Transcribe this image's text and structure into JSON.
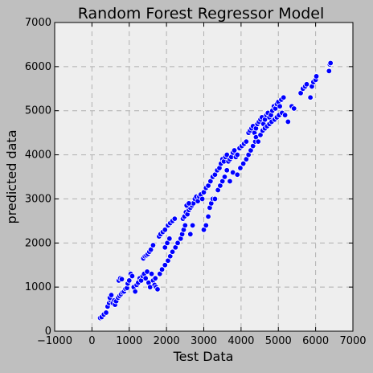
{
  "chart_data": {
    "type": "scatter",
    "title": "Random Forest Regressor Model",
    "xlabel": "Test Data",
    "ylabel": "predicted data",
    "xlim": [
      -1000,
      7000
    ],
    "ylim": [
      0,
      7000
    ],
    "xticks": [
      "−1000",
      "0",
      "1000",
      "2000",
      "3000",
      "4000",
      "5000",
      "6000",
      "7000"
    ],
    "yticks": [
      "0",
      "1000",
      "2000",
      "3000",
      "4000",
      "5000",
      "6000",
      "7000"
    ],
    "grid": true,
    "marker_color": "#0000ff",
    "marker_edge_color": "#ffffff",
    "plot_background": "#eeeeee",
    "figure_background": "#bfbfbf",
    "series": [
      {
        "points": [
          [
            220,
            300
          ],
          [
            260,
            320
          ],
          [
            320,
            380
          ],
          [
            380,
            420
          ],
          [
            420,
            560
          ],
          [
            460,
            640
          ],
          [
            500,
            700
          ],
          [
            480,
            760
          ],
          [
            520,
            820
          ],
          [
            560,
            640
          ],
          [
            600,
            700
          ],
          [
            620,
            600
          ],
          [
            650,
            680
          ],
          [
            700,
            760
          ],
          [
            740,
            800
          ],
          [
            780,
            840
          ],
          [
            820,
            880
          ],
          [
            860,
            900
          ],
          [
            900,
            960
          ],
          [
            940,
            980
          ],
          [
            720,
            1150
          ],
          [
            760,
            1200
          ],
          [
            800,
            1180
          ],
          [
            960,
            1080
          ],
          [
            1000,
            1150
          ],
          [
            1040,
            1300
          ],
          [
            1080,
            1250
          ],
          [
            1120,
            1000
          ],
          [
            1160,
            900
          ],
          [
            1200,
            1050
          ],
          [
            1240,
            1100
          ],
          [
            1280,
            1200
          ],
          [
            1320,
            1150
          ],
          [
            1360,
            1250
          ],
          [
            1400,
            1300
          ],
          [
            1440,
            1200
          ],
          [
            1480,
            1350
          ],
          [
            1520,
            1100
          ],
          [
            1560,
            1000
          ],
          [
            1600,
            1300
          ],
          [
            1640,
            1150
          ],
          [
            1680,
            1050
          ],
          [
            1700,
            1200
          ],
          [
            1720,
            1000
          ],
          [
            1760,
            950
          ],
          [
            1380,
            1650
          ],
          [
            1420,
            1700
          ],
          [
            1460,
            1720
          ],
          [
            1500,
            1750
          ],
          [
            1540,
            1800
          ],
          [
            1580,
            1850
          ],
          [
            1640,
            1950
          ],
          [
            1800,
            2150
          ],
          [
            1840,
            2200
          ],
          [
            1900,
            2250
          ],
          [
            1960,
            2300
          ],
          [
            2040,
            2400
          ],
          [
            2100,
            2450
          ],
          [
            2160,
            2500
          ],
          [
            2220,
            2550
          ],
          [
            1820,
            1300
          ],
          [
            1880,
            1400
          ],
          [
            1960,
            1500
          ],
          [
            2040,
            1600
          ],
          [
            2100,
            1700
          ],
          [
            2160,
            1800
          ],
          [
            2240,
            1900
          ],
          [
            2300,
            2000
          ],
          [
            1960,
            1900
          ],
          [
            2020,
            2000
          ],
          [
            2080,
            2100
          ],
          [
            2380,
            2100
          ],
          [
            2420,
            2200
          ],
          [
            2460,
            2300
          ],
          [
            2500,
            2400
          ],
          [
            2440,
            2550
          ],
          [
            2480,
            2600
          ],
          [
            2520,
            2700
          ],
          [
            2560,
            2650
          ],
          [
            2600,
            2750
          ],
          [
            2640,
            2800
          ],
          [
            2680,
            2850
          ],
          [
            2720,
            2900
          ],
          [
            2760,
            3000
          ],
          [
            2800,
            3050
          ],
          [
            2840,
            2950
          ],
          [
            2880,
            3050
          ],
          [
            2920,
            3100
          ],
          [
            2960,
            3000
          ],
          [
            2540,
            2850
          ],
          [
            2600,
            2900
          ],
          [
            3000,
            2300
          ],
          [
            3060,
            2400
          ],
          [
            3120,
            2600
          ],
          [
            3160,
            2800
          ],
          [
            3200,
            2900
          ],
          [
            3240,
            3000
          ],
          [
            2640,
            2200
          ],
          [
            2700,
            2400
          ],
          [
            3000,
            3150
          ],
          [
            3060,
            3250
          ],
          [
            3120,
            3300
          ],
          [
            3180,
            3400
          ],
          [
            3240,
            3500
          ],
          [
            3300,
            3550
          ],
          [
            3360,
            3650
          ],
          [
            3420,
            3700
          ],
          [
            3300,
            3000
          ],
          [
            3380,
            3200
          ],
          [
            3440,
            3300
          ],
          [
            3500,
            3400
          ],
          [
            3560,
            3500
          ],
          [
            3620,
            3650
          ],
          [
            3700,
            3400
          ],
          [
            3780,
            3600
          ],
          [
            3460,
            3800
          ],
          [
            3500,
            3900
          ],
          [
            3540,
            3850
          ],
          [
            3580,
            3950
          ],
          [
            3620,
            4000
          ],
          [
            3660,
            3850
          ],
          [
            3700,
            3900
          ],
          [
            3740,
            3950
          ],
          [
            3780,
            4050
          ],
          [
            3820,
            4100
          ],
          [
            3860,
            3950
          ],
          [
            3900,
            4000
          ],
          [
            3960,
            4150
          ],
          [
            4020,
            4200
          ],
          [
            4080,
            4250
          ],
          [
            4140,
            4300
          ],
          [
            3900,
            3550
          ],
          [
            3980,
            3700
          ],
          [
            4060,
            3800
          ],
          [
            4140,
            3900
          ],
          [
            4200,
            4000
          ],
          [
            4260,
            4100
          ],
          [
            4320,
            4200
          ],
          [
            4380,
            4300
          ],
          [
            4200,
            4500
          ],
          [
            4240,
            4550
          ],
          [
            4280,
            4600
          ],
          [
            4320,
            4650
          ],
          [
            4360,
            4500
          ],
          [
            4400,
            4600
          ],
          [
            4440,
            4700
          ],
          [
            4480,
            4750
          ],
          [
            4520,
            4800
          ],
          [
            4560,
            4850
          ],
          [
            4600,
            4700
          ],
          [
            4640,
            4800
          ],
          [
            4680,
            4900
          ],
          [
            4720,
            4950
          ],
          [
            4760,
            4850
          ],
          [
            4800,
            4900
          ],
          [
            4400,
            4400
          ],
          [
            4460,
            4300
          ],
          [
            4520,
            4450
          ],
          [
            4580,
            4550
          ],
          [
            4640,
            4600
          ],
          [
            4700,
            4650
          ],
          [
            4760,
            4700
          ],
          [
            4820,
            4750
          ],
          [
            4840,
            5000
          ],
          [
            4880,
            5100
          ],
          [
            4920,
            5050
          ],
          [
            4960,
            5150
          ],
          [
            5000,
            5200
          ],
          [
            5040,
            5100
          ],
          [
            5080,
            5250
          ],
          [
            5140,
            5300
          ],
          [
            4900,
            4800
          ],
          [
            4960,
            4850
          ],
          [
            5020,
            4900
          ],
          [
            5100,
            4950
          ],
          [
            5180,
            4900
          ],
          [
            5260,
            4750
          ],
          [
            5360,
            5100
          ],
          [
            5420,
            5050
          ],
          [
            5600,
            5400
          ],
          [
            5660,
            5500
          ],
          [
            5720,
            5550
          ],
          [
            5760,
            5600
          ],
          [
            5860,
            5300
          ],
          [
            5900,
            5550
          ],
          [
            5940,
            5650
          ],
          [
            6000,
            5700
          ],
          [
            6020,
            5780
          ],
          [
            6360,
            5900
          ],
          [
            6380,
            6050
          ],
          [
            6400,
            6080
          ]
        ]
      }
    ]
  }
}
